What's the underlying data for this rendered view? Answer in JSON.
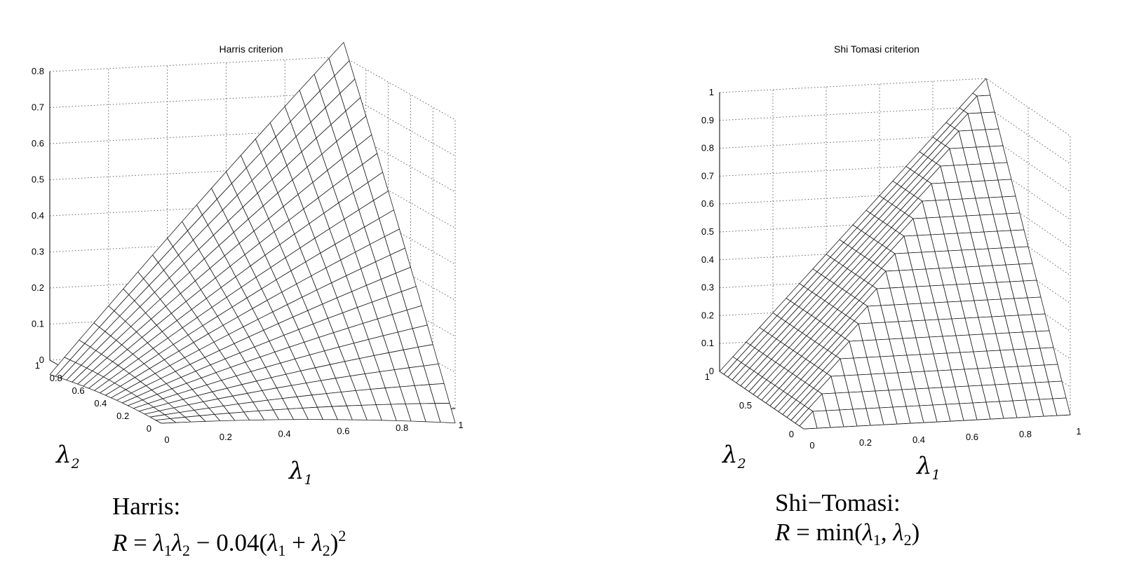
{
  "chart_data": [
    {
      "type": "surface",
      "title": "Harris criterion",
      "x_axis_symbol": "λ",
      "x_axis_subscript": "1",
      "y_axis_symbol": "λ",
      "y_axis_subscript": "2",
      "x_ticks": [
        "0",
        "0.2",
        "0.4",
        "0.6",
        "0.8",
        "1"
      ],
      "y_ticks": [
        "0",
        "0.2",
        "0.4",
        "0.6",
        "0.8",
        "1"
      ],
      "z_ticks": [
        "0",
        "0.1",
        "0.2",
        "0.3",
        "0.4",
        "0.5",
        "0.6",
        "0.7",
        "0.8"
      ],
      "xlim": [
        0,
        1
      ],
      "ylim": [
        0,
        1
      ],
      "zlim": [
        0,
        0.8
      ],
      "grid": true,
      "mesh_divisions": 20,
      "function": "R = λ1λ2 - 0.04(λ1 + λ2)^2",
      "corner_values": {
        "R(0,0)": 0,
        "R(1,0)": -0.04,
        "R(0,1)": -0.04,
        "R(1,1)": 0.84
      }
    },
    {
      "type": "surface",
      "title": "Shi Tomasi criterion",
      "x_axis_symbol": "λ",
      "x_axis_subscript": "1",
      "y_axis_symbol": "λ",
      "y_axis_subscript": "2",
      "x_ticks": [
        "0",
        "0.2",
        "0.4",
        "0.6",
        "0.8",
        "1"
      ],
      "y_ticks": [
        "0",
        "0.5",
        "1"
      ],
      "z_ticks": [
        "0",
        "0.1",
        "0.2",
        "0.3",
        "0.4",
        "0.5",
        "0.6",
        "0.7",
        "0.8",
        "0.9",
        "1"
      ],
      "xlim": [
        0,
        1
      ],
      "ylim": [
        0,
        1
      ],
      "zlim": [
        0,
        1
      ],
      "grid": true,
      "mesh_divisions": 20,
      "function": "R = min(λ1, λ2)",
      "corner_values": {
        "R(0,0)": 0,
        "R(1,0)": 0,
        "R(0,1)": 0,
        "R(1,1)": 1
      }
    }
  ],
  "captions": {
    "harris": {
      "heading": "Harris:",
      "R": "R",
      "eq": " = ",
      "l": "λ",
      "s1": "1",
      "s2": "2",
      "minus_coef": " − 0.04(",
      "plus": " + ",
      "close": ")",
      "exp": "2"
    },
    "shi_tomasi": {
      "heading": "Shi−Tomasi:",
      "R": "R",
      "eq": " = min(",
      "l": "λ",
      "s1": "1",
      "comma": ", ",
      "s2": "2",
      "close": ")"
    }
  }
}
